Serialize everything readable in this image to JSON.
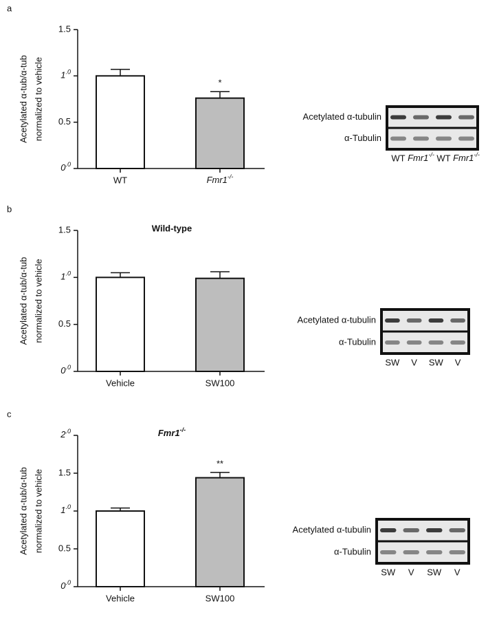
{
  "chart_data": [
    {
      "type": "bar",
      "panel": "a",
      "ylabel": [
        "Acetylated α-tub/α-tub",
        "normalized to vehicle"
      ],
      "categories": [
        "WT",
        "Fmr1-/-"
      ],
      "values": [
        1.0,
        0.76
      ],
      "errors": [
        0.07,
        0.07
      ],
      "colors": [
        "#ffffff",
        "#bdbdbd"
      ],
      "annotations": [
        null,
        "*"
      ],
      "ylim": [
        0,
        1.5
      ],
      "yticks": [
        {
          "value": 0,
          "label": "0.0"
        },
        0.5,
        {
          "value": 1,
          "label": "1.0"
        },
        1.5
      ],
      "blot": {
        "rows": [
          "Acetylated α-tubulin",
          "α-Tubulin"
        ],
        "lanes": [
          "WT",
          "Fmr1-/-",
          "WT",
          "Fmr1-/-"
        ]
      }
    },
    {
      "type": "bar",
      "panel": "b",
      "title": "Wild-type",
      "ylabel": [
        "Acetylated α-tub/α-tub",
        "normalized to vehicle"
      ],
      "categories": [
        "Vehicle",
        "SW100"
      ],
      "values": [
        1.0,
        0.99
      ],
      "errors": [
        0.05,
        0.07
      ],
      "colors": [
        "#ffffff",
        "#bdbdbd"
      ],
      "annotations": [
        null,
        null
      ],
      "ylim": [
        0,
        1.5
      ],
      "yticks": [
        {
          "value": 0,
          "label": "0.0"
        },
        0.5,
        {
          "value": 1,
          "label": "1.0"
        },
        1.5
      ],
      "blot": {
        "rows": [
          "Acetylated α-tubulin",
          "α-Tubulin"
        ],
        "lanes": [
          "SW",
          "V",
          "SW",
          "V"
        ]
      }
    },
    {
      "type": "bar",
      "panel": "c",
      "title": "Fmr1-/-",
      "ylabel": [
        "Acetylated α-tub/α-tub",
        "normalized to vehicle"
      ],
      "categories": [
        "Vehicle",
        "SW100"
      ],
      "values": [
        1.0,
        1.44
      ],
      "errors": [
        0.04,
        0.07
      ],
      "colors": [
        "#ffffff",
        "#bdbdbd"
      ],
      "annotations": [
        null,
        "**"
      ],
      "ylim": [
        0,
        2
      ],
      "yticks": [
        {
          "value": 0,
          "label": "0.0"
        },
        0.5,
        {
          "value": 1,
          "label": "1.0"
        },
        1.5,
        {
          "value": 2,
          "label": "2.0"
        }
      ],
      "blot": {
        "rows": [
          "Acetylated α-tubulin",
          "α-Tubulin"
        ],
        "lanes": [
          "SW",
          "V",
          "SW",
          "V"
        ]
      }
    }
  ]
}
